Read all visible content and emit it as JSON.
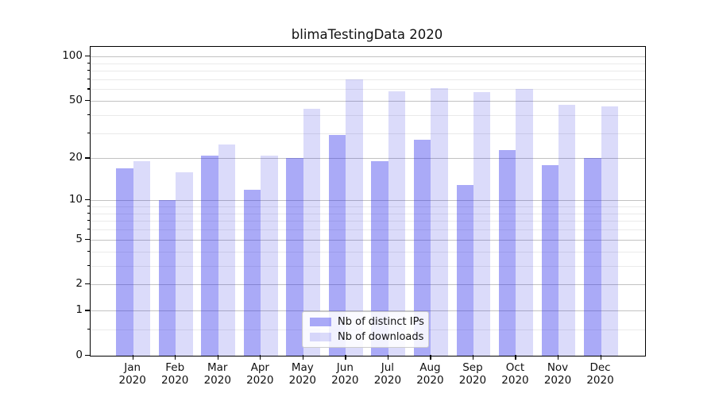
{
  "chart_data": {
    "type": "bar",
    "title": "blimaTestingData 2020",
    "categories": [
      "Jan",
      "Feb",
      "Mar",
      "Apr",
      "May",
      "Jun",
      "Jul",
      "Aug",
      "Sep",
      "Oct",
      "Nov",
      "Dec"
    ],
    "x_year": "2020",
    "series": [
      {
        "name": "Nb of distinct IPs",
        "values": [
          17,
          10,
          21,
          12,
          20,
          29,
          19,
          27,
          13,
          23,
          18,
          20
        ],
        "color": "rgba(43,43,235,0.40)"
      },
      {
        "name": "Nb of downloads",
        "values": [
          19,
          16,
          25,
          21,
          44,
          70,
          58,
          61,
          57,
          60,
          47,
          46
        ],
        "color": "rgba(15,15,222,0.15)"
      }
    ],
    "yscale": "log1p",
    "ylim": [
      0,
      116
    ],
    "y_major_ticks": [
      100,
      50,
      20,
      10,
      5,
      2,
      1,
      0
    ],
    "y_minor_gridlines": [
      0.5,
      3,
      4,
      6,
      7,
      8,
      9,
      30,
      40,
      60,
      70,
      80,
      90
    ],
    "grid": true,
    "legend_position": "lower center",
    "xlabel": "",
    "ylabel": ""
  },
  "colors": {
    "grid_major": "#c2c2c2",
    "grid_minor": "#eaeaea",
    "axis": "#000000",
    "text": "#111111",
    "background": "#ffffff"
  }
}
